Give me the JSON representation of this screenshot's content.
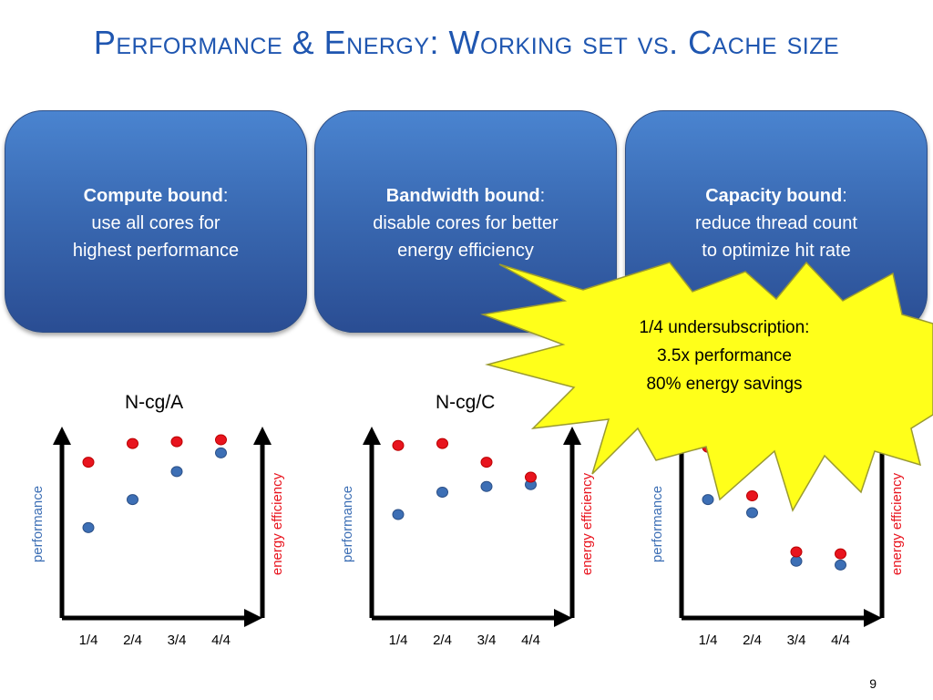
{
  "slide": {
    "title": "Performance & Energy: Working set vs. Cache size",
    "page_number": "9"
  },
  "boxes": [
    {
      "bold": "Compute bound",
      "colon": ":",
      "line1": "use all cores for",
      "line2": "highest performance"
    },
    {
      "bold": "Bandwidth bound",
      "colon": ":",
      "line1": "disable cores for better",
      "line2": "energy efficiency"
    },
    {
      "bold": "Capacity bound",
      "colon": ":",
      "line1": "reduce thread count",
      "line2": "to optimize hit rate"
    }
  ],
  "callout": {
    "line1": "1/4 undersubscription:",
    "line2": "3.5x performance",
    "line3": "80% energy savings"
  },
  "colors": {
    "performance": "#3d6fb5",
    "energy": "#e8141e",
    "title": "#1f56b0",
    "star_fill": "#ffff1a",
    "star_stroke": "#9a9a30"
  },
  "chart_data": [
    {
      "type": "scatter",
      "title": "N-cg/A",
      "categories": [
        "1/4",
        "2/4",
        "3/4",
        "4/4"
      ],
      "ylabel": "performance",
      "y2label": "energy efficiency",
      "ylim": [
        0,
        1
      ],
      "series": [
        {
          "name": "performance",
          "values": [
            0.42,
            0.57,
            0.72,
            0.82
          ]
        },
        {
          "name": "energy efficiency",
          "values": [
            0.77,
            0.87,
            0.88,
            0.89
          ]
        }
      ]
    },
    {
      "type": "scatter",
      "title": "N-cg/C",
      "categories": [
        "1/4",
        "2/4",
        "3/4",
        "4/4"
      ],
      "ylabel": "performance",
      "y2label": "energy efficiency",
      "ylim": [
        0,
        1
      ],
      "series": [
        {
          "name": "performance",
          "values": [
            0.49,
            0.61,
            0.64,
            0.65
          ]
        },
        {
          "name": "energy efficiency",
          "values": [
            0.86,
            0.87,
            0.77,
            0.69
          ]
        }
      ]
    },
    {
      "type": "scatter",
      "title": "",
      "categories": [
        "1/4",
        "2/4",
        "3/4",
        "4/4"
      ],
      "ylabel": "performance",
      "y2label": "energy efficiency",
      "ylim": [
        0,
        1
      ],
      "series": [
        {
          "name": "performance",
          "values": [
            0.57,
            0.5,
            0.24,
            0.22
          ]
        },
        {
          "name": "energy efficiency",
          "values": [
            0.85,
            0.59,
            0.29,
            0.28
          ]
        }
      ]
    }
  ]
}
